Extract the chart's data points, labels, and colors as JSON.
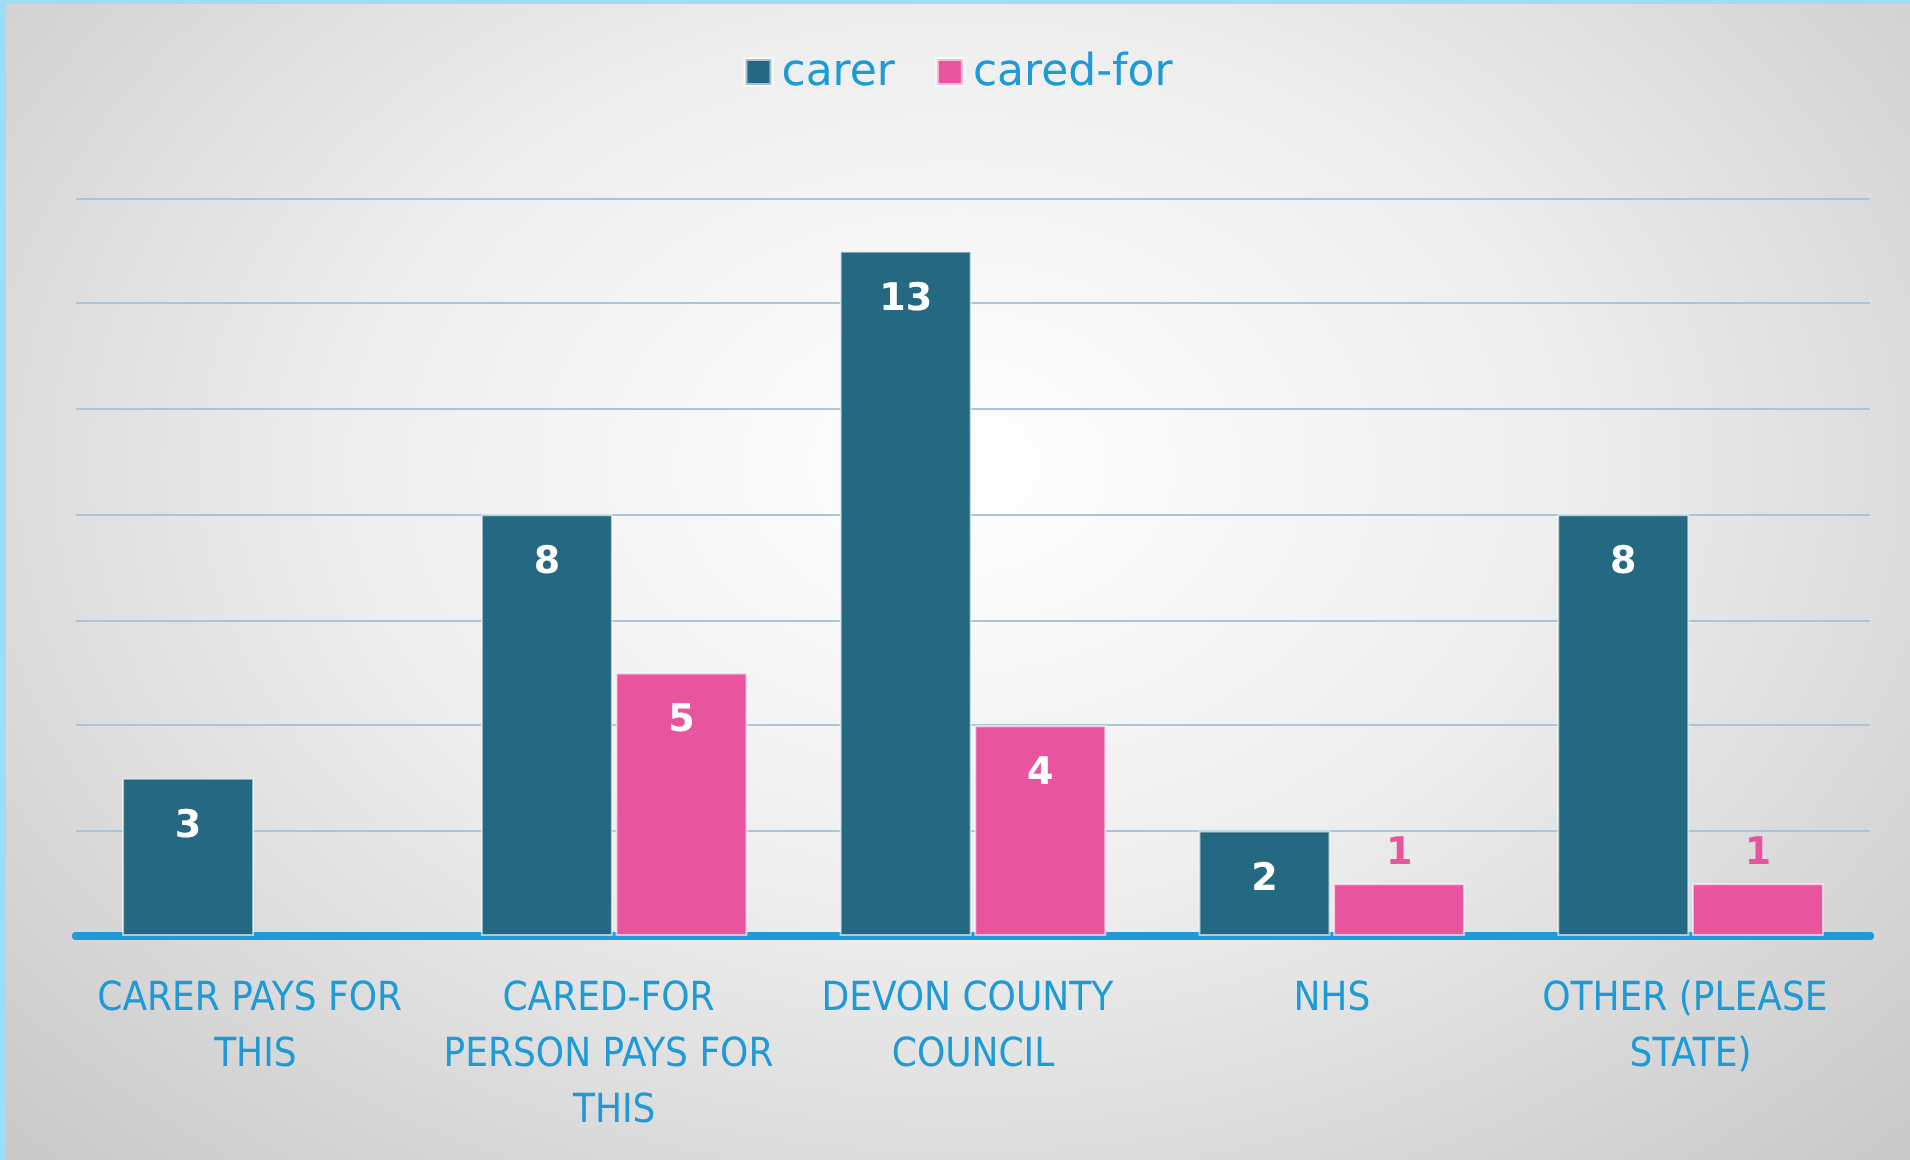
{
  "chart_data": {
    "type": "bar",
    "categories": [
      "CARER PAYS FOR THIS",
      "CARED-FOR PERSON PAYS FOR THIS",
      "DEVON COUNTY COUNCIL",
      "NHS",
      "OTHER (PLEASE STATE)"
    ],
    "series": [
      {
        "name": "carer",
        "color": "#246882",
        "values": [
          3,
          8,
          13,
          2,
          8
        ]
      },
      {
        "name": "cared-for",
        "color": "#e8559e",
        "values": [
          null,
          5,
          4,
          1,
          1
        ]
      }
    ],
    "ylim": [
      0,
      14
    ],
    "yticks": [
      {
        "value": 0,
        "label": null
      },
      {
        "value": 2,
        "label": null
      },
      {
        "value": 4,
        "label": null
      },
      {
        "value": 6,
        "label": null
      },
      {
        "value": 8,
        "label": null
      },
      {
        "value": 10,
        "label": null
      },
      {
        "value": 12,
        "label": null
      },
      {
        "value": 14,
        "label": null
      }
    ],
    "tick_labels": "x",
    "grid": "y",
    "legend": "top",
    "data_labels": true
  }
}
